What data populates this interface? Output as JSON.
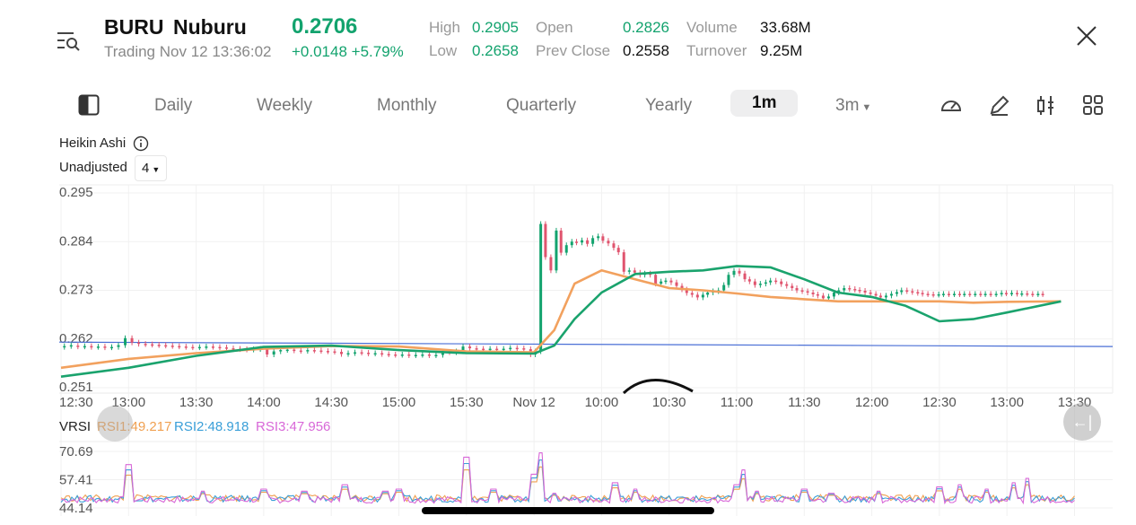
{
  "header": {
    "ticker": "BURU",
    "name": "Nuburu",
    "price": "0.2706",
    "status": "Trading Nov 12 13:36:02",
    "change": "+0.0148 +5.79%",
    "stats": [
      {
        "label": "High",
        "value": "0.2905",
        "green": true
      },
      {
        "label": "Low",
        "value": "0.2658",
        "green": true
      },
      {
        "label": "Open",
        "value": "0.2826",
        "green": true
      },
      {
        "label": "Prev Close",
        "value": "0.2558",
        "green": false
      },
      {
        "label": "Volume",
        "value": "33.68M",
        "green": false
      },
      {
        "label": "Turnover",
        "value": "9.25M",
        "green": false
      }
    ]
  },
  "tabs": [
    "Daily",
    "Weekly",
    "Monthly",
    "Quarterly",
    "Yearly",
    "1m",
    "3m"
  ],
  "active_tab": "1m",
  "chart_type_label": "Heikin Ashi",
  "adjust_label": "Unadjusted",
  "adjust_value": "4",
  "back_label": "←|",
  "colors": {
    "up": "#13a36e",
    "down": "#e0546e",
    "ma_short": "#f2a15e",
    "ma_long": "#1aa36d",
    "ref_line": "#4a6fd6",
    "rsi1": "#f0a050",
    "rsi2": "#3a9fd8",
    "rsi3": "#d868d8"
  },
  "chart_data": [
    {
      "type": "candlestick",
      "title": "",
      "y_ticks": [
        "0.295",
        "0.284",
        "0.273",
        "0.262",
        "0.251"
      ],
      "ylim": [
        0.251,
        0.295
      ],
      "x_ticks": [
        "12:30",
        "13:00",
        "13:30",
        "14:00",
        "14:30",
        "15:00",
        "15:30",
        "Nov 12",
        "10:00",
        "10:30",
        "11:00",
        "11:30",
        "12:00",
        "12:30",
        "13:00",
        "13:30"
      ],
      "reference_line": 0.2608,
      "ma_short": [
        [
          0,
          0.2555
        ],
        [
          1,
          0.2575
        ],
        [
          2,
          0.2588
        ],
        [
          3,
          0.2598
        ],
        [
          4,
          0.2604
        ],
        [
          5,
          0.2603
        ],
        [
          6,
          0.2592
        ],
        [
          7,
          0.259
        ],
        [
          7.3,
          0.264
        ],
        [
          7.6,
          0.2745
        ],
        [
          8,
          0.2775
        ],
        [
          8.5,
          0.2755
        ],
        [
          9,
          0.2735
        ],
        [
          9.5,
          0.273
        ],
        [
          10,
          0.2723
        ],
        [
          10.5,
          0.2715
        ],
        [
          11,
          0.271
        ],
        [
          11.5,
          0.2705
        ],
        [
          12,
          0.2705
        ],
        [
          12.5,
          0.2705
        ],
        [
          13,
          0.2705
        ],
        [
          13.5,
          0.2702
        ],
        [
          14,
          0.2704
        ],
        [
          14.8,
          0.2705
        ]
      ],
      "ma_long": [
        [
          0,
          0.2535
        ],
        [
          1,
          0.2555
        ],
        [
          2,
          0.2582
        ],
        [
          3,
          0.2602
        ],
        [
          4,
          0.2605
        ],
        [
          5,
          0.2595
        ],
        [
          6,
          0.2588
        ],
        [
          7,
          0.2587
        ],
        [
          7.3,
          0.2605
        ],
        [
          7.6,
          0.2665
        ],
        [
          8,
          0.2725
        ],
        [
          8.5,
          0.2767
        ],
        [
          9,
          0.2772
        ],
        [
          9.5,
          0.2775
        ],
        [
          10,
          0.2785
        ],
        [
          10.5,
          0.2782
        ],
        [
          11,
          0.2755
        ],
        [
          11.5,
          0.2725
        ],
        [
          12,
          0.2715
        ],
        [
          12.5,
          0.2695
        ],
        [
          13,
          0.266
        ],
        [
          13.5,
          0.2665
        ],
        [
          14,
          0.268
        ],
        [
          14.8,
          0.2705
        ]
      ],
      "candles": [
        [
          0.05,
          0.2602,
          0.2604
        ],
        [
          0.15,
          0.2604,
          0.2606
        ],
        [
          0.25,
          0.2605,
          0.2603
        ],
        [
          0.35,
          0.2603,
          0.2604
        ],
        [
          0.45,
          0.2604,
          0.2602
        ],
        [
          0.55,
          0.2602,
          0.2603
        ],
        [
          0.65,
          0.2603,
          0.2601
        ],
        [
          0.75,
          0.2601,
          0.2602
        ],
        [
          0.85,
          0.2602,
          0.2606
        ],
        [
          0.95,
          0.2606,
          0.2622
        ],
        [
          1.05,
          0.2622,
          0.2612
        ],
        [
          1.15,
          0.2612,
          0.2609
        ],
        [
          1.25,
          0.2609,
          0.2608
        ],
        [
          1.35,
          0.2608,
          0.2607
        ],
        [
          1.45,
          0.2607,
          0.2606
        ],
        [
          1.55,
          0.2606,
          0.2605
        ],
        [
          1.65,
          0.2605,
          0.2604
        ],
        [
          1.75,
          0.2604,
          0.2603
        ],
        [
          1.85,
          0.2603,
          0.2602
        ],
        [
          1.95,
          0.2602,
          0.2601
        ],
        [
          2.05,
          0.2601,
          0.2602
        ],
        [
          2.15,
          0.2602,
          0.2603
        ],
        [
          2.25,
          0.2603,
          0.2602
        ],
        [
          2.35,
          0.2602,
          0.2601
        ],
        [
          2.45,
          0.2601,
          0.2599
        ],
        [
          2.55,
          0.2599,
          0.2598
        ],
        [
          2.65,
          0.2598,
          0.2597
        ],
        [
          2.75,
          0.2597,
          0.2596
        ],
        [
          2.85,
          0.2596,
          0.2597
        ],
        [
          2.95,
          0.2597,
          0.2598
        ],
        [
          3.05,
          0.2598,
          0.2585
        ],
        [
          3.15,
          0.2585,
          0.2592
        ],
        [
          3.25,
          0.2592,
          0.2595
        ],
        [
          3.35,
          0.2595,
          0.2596
        ],
        [
          3.45,
          0.2596,
          0.2594
        ],
        [
          3.55,
          0.2594,
          0.2593
        ],
        [
          3.65,
          0.2593,
          0.2595
        ],
        [
          3.75,
          0.2595,
          0.2594
        ],
        [
          3.85,
          0.2594,
          0.2593
        ],
        [
          3.95,
          0.2593,
          0.2592
        ],
        [
          4.05,
          0.2592,
          0.2591
        ],
        [
          4.15,
          0.2591,
          0.2586
        ],
        [
          4.25,
          0.2586,
          0.2588
        ],
        [
          4.35,
          0.2588,
          0.259
        ],
        [
          4.45,
          0.259,
          0.2589
        ],
        [
          4.55,
          0.2589,
          0.2587
        ],
        [
          4.65,
          0.2587,
          0.2588
        ],
        [
          4.75,
          0.2588,
          0.2586
        ],
        [
          4.85,
          0.2586,
          0.2585
        ],
        [
          4.95,
          0.2585,
          0.2584
        ],
        [
          5.05,
          0.2584,
          0.2585
        ],
        [
          5.15,
          0.2585,
          0.2583
        ],
        [
          5.25,
          0.2583,
          0.2584
        ],
        [
          5.35,
          0.2584,
          0.2585
        ],
        [
          5.45,
          0.2585,
          0.2583
        ],
        [
          5.55,
          0.2583,
          0.2584
        ],
        [
          5.65,
          0.2584,
          0.2591
        ],
        [
          5.75,
          0.2591,
          0.259
        ],
        [
          5.85,
          0.259,
          0.2592
        ],
        [
          5.95,
          0.2592,
          0.2603
        ],
        [
          6.05,
          0.2603,
          0.2599
        ],
        [
          6.15,
          0.2599,
          0.2598
        ],
        [
          6.25,
          0.2598,
          0.2597
        ],
        [
          6.35,
          0.2597,
          0.2598
        ],
        [
          6.45,
          0.2598,
          0.2597
        ],
        [
          6.55,
          0.2597,
          0.2598
        ],
        [
          6.65,
          0.2598,
          0.26
        ],
        [
          6.75,
          0.26,
          0.2599
        ],
        [
          6.85,
          0.2599,
          0.2597
        ],
        [
          6.95,
          0.2597,
          0.2585
        ],
        [
          7.02,
          0.2585,
          0.2592
        ],
        [
          7.1,
          0.2592,
          0.288
        ],
        [
          7.17,
          0.288,
          0.2805
        ],
        [
          7.25,
          0.2805,
          0.2775
        ],
        [
          7.33,
          0.2775,
          0.2865
        ],
        [
          7.4,
          0.2865,
          0.2815
        ],
        [
          7.48,
          0.2815,
          0.2832
        ],
        [
          7.56,
          0.2832,
          0.284
        ],
        [
          7.63,
          0.284,
          0.2838
        ],
        [
          7.71,
          0.2838,
          0.2843
        ],
        [
          7.79,
          0.2843,
          0.2835
        ],
        [
          7.87,
          0.2835,
          0.2848
        ],
        [
          7.95,
          0.2848,
          0.2852
        ],
        [
          8.02,
          0.2852,
          0.2842
        ],
        [
          8.1,
          0.2842,
          0.2836
        ],
        [
          8.18,
          0.2836,
          0.2826
        ],
        [
          8.25,
          0.2826,
          0.2816
        ],
        [
          8.33,
          0.2816,
          0.2772
        ],
        [
          8.41,
          0.2772,
          0.2775
        ],
        [
          8.49,
          0.2775,
          0.277
        ],
        [
          8.57,
          0.277,
          0.2765
        ],
        [
          8.64,
          0.2765,
          0.2768
        ],
        [
          8.72,
          0.2768,
          0.2765
        ],
        [
          8.8,
          0.2765,
          0.2745
        ],
        [
          8.88,
          0.2745,
          0.275
        ],
        [
          8.95,
          0.275,
          0.2752
        ],
        [
          9.03,
          0.2752,
          0.2748
        ],
        [
          9.11,
          0.2748,
          0.274
        ],
        [
          9.19,
          0.274,
          0.2732
        ],
        [
          9.26,
          0.2732,
          0.2724
        ],
        [
          9.34,
          0.2724,
          0.272
        ],
        [
          9.42,
          0.272,
          0.2714
        ],
        [
          9.5,
          0.2714,
          0.272
        ],
        [
          9.57,
          0.272,
          0.2725
        ],
        [
          9.65,
          0.2725,
          0.2728
        ],
        [
          9.73,
          0.2728,
          0.273
        ],
        [
          9.81,
          0.273,
          0.2742
        ],
        [
          9.88,
          0.2742,
          0.2765
        ],
        [
          9.96,
          0.2765,
          0.2774
        ],
        [
          10.04,
          0.2774,
          0.2768
        ],
        [
          10.12,
          0.2768,
          0.2755
        ],
        [
          10.19,
          0.2755,
          0.275
        ],
        [
          10.27,
          0.275,
          0.2742
        ],
        [
          10.35,
          0.2742,
          0.2745
        ],
        [
          10.43,
          0.2745,
          0.2748
        ],
        [
          10.5,
          0.2748,
          0.2752
        ],
        [
          10.58,
          0.2752,
          0.275
        ],
        [
          10.66,
          0.275,
          0.2744
        ],
        [
          10.74,
          0.2744,
          0.274
        ],
        [
          10.82,
          0.274,
          0.2735
        ],
        [
          10.89,
          0.2735,
          0.273
        ],
        [
          10.97,
          0.273,
          0.2728
        ],
        [
          11.05,
          0.2728,
          0.2725
        ],
        [
          11.13,
          0.2725,
          0.2721
        ],
        [
          11.2,
          0.2721,
          0.2718
        ],
        [
          11.28,
          0.2718,
          0.2712
        ],
        [
          11.36,
          0.2712,
          0.2716
        ],
        [
          11.44,
          0.2716,
          0.2725
        ],
        [
          11.51,
          0.2725,
          0.273
        ],
        [
          11.59,
          0.273,
          0.2735
        ],
        [
          11.67,
          0.2735,
          0.2733
        ],
        [
          11.75,
          0.2733,
          0.2731
        ],
        [
          11.82,
          0.2731,
          0.2729
        ],
        [
          11.9,
          0.2729,
          0.2725
        ],
        [
          11.98,
          0.2725,
          0.2722
        ],
        [
          12.06,
          0.2722,
          0.2718
        ],
        [
          12.13,
          0.2718,
          0.2714
        ],
        [
          12.21,
          0.2714,
          0.2718
        ],
        [
          12.29,
          0.2718,
          0.2722
        ],
        [
          12.37,
          0.2722,
          0.2726
        ],
        [
          12.44,
          0.2726,
          0.273
        ],
        [
          12.52,
          0.273,
          0.2728
        ],
        [
          12.6,
          0.2728,
          0.2726
        ],
        [
          12.68,
          0.2726,
          0.2724
        ],
        [
          12.75,
          0.2724,
          0.2722
        ],
        [
          12.83,
          0.2722,
          0.2721
        ],
        [
          12.91,
          0.2721,
          0.272
        ],
        [
          12.99,
          0.272,
          0.2721
        ],
        [
          13.06,
          0.2721,
          0.2722
        ],
        [
          13.14,
          0.2722,
          0.2721
        ],
        [
          13.22,
          0.2721,
          0.2722
        ],
        [
          13.3,
          0.2722,
          0.2721
        ],
        [
          13.37,
          0.2721,
          0.2722
        ],
        [
          13.45,
          0.2722,
          0.2721
        ],
        [
          13.53,
          0.2721,
          0.2722
        ],
        [
          13.61,
          0.2722,
          0.2721
        ],
        [
          13.68,
          0.2721,
          0.2722
        ],
        [
          13.76,
          0.2722,
          0.2721
        ],
        [
          13.84,
          0.2721,
          0.2722
        ],
        [
          13.92,
          0.2722,
          0.2724
        ],
        [
          13.99,
          0.2724,
          0.2723
        ],
        [
          14.07,
          0.2723,
          0.2724
        ],
        [
          14.15,
          0.2724,
          0.2722
        ],
        [
          14.22,
          0.2722,
          0.2723
        ],
        [
          14.3,
          0.2723,
          0.2722
        ],
        [
          14.38,
          0.2722,
          0.2721
        ],
        [
          14.46,
          0.2721,
          0.2722
        ],
        [
          14.53,
          0.2722,
          0.2721
        ]
      ]
    },
    {
      "type": "line",
      "title": "VRSI",
      "y_ticks": [
        "70.69",
        "57.41",
        "44.14"
      ],
      "ylim": [
        44.14,
        70.69
      ],
      "series": [
        {
          "name": "RSI1",
          "legend": "RSI1:49.217",
          "color_key": "rsi1"
        },
        {
          "name": "RSI2",
          "legend": "RSI2:48.918",
          "color_key": "rsi2"
        },
        {
          "name": "RSI3",
          "legend": "RSI3:47.956",
          "color_key": "rsi3"
        }
      ],
      "spikes": [
        [
          1.0,
          64.5
        ],
        [
          2.1,
          52
        ],
        [
          3.0,
          53
        ],
        [
          3.6,
          52
        ],
        [
          4.2,
          55
        ],
        [
          4.8,
          52
        ],
        [
          5.0,
          53
        ],
        [
          6.0,
          68
        ],
        [
          6.4,
          53
        ],
        [
          7.0,
          60
        ],
        [
          7.1,
          70
        ],
        [
          7.3,
          51
        ],
        [
          8.2,
          56
        ],
        [
          8.5,
          53
        ],
        [
          10.0,
          55
        ],
        [
          10.1,
          62
        ],
        [
          10.3,
          52
        ],
        [
          11.0,
          53
        ],
        [
          11.4,
          51
        ],
        [
          12.1,
          52
        ],
        [
          13.0,
          54
        ],
        [
          13.3,
          55
        ],
        [
          13.7,
          53
        ],
        [
          14.1,
          56
        ],
        [
          14.3,
          58
        ]
      ]
    }
  ]
}
